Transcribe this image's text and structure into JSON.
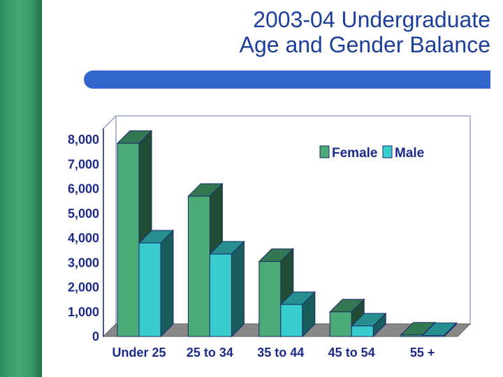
{
  "header": {
    "title_line1": "2003-04 Undergraduate",
    "title_line2": "Age and Gender Balance"
  },
  "colors": {
    "female": "#4aab76",
    "male": "#38cccc",
    "accent": "#3366cc",
    "text": "#1c2a8c",
    "side_band": "#3a9a67"
  },
  "chart_data": {
    "type": "bar",
    "categories": [
      "Under 25",
      "25 to 34",
      "35 to 44",
      "45 to 54",
      "55 +"
    ],
    "series": [
      {
        "name": "Female",
        "values": [
          7850,
          5700,
          3050,
          1000,
          60
        ]
      },
      {
        "name": "Male",
        "values": [
          3800,
          3350,
          1300,
          430,
          40
        ]
      }
    ],
    "ylim": [
      0,
      8000
    ],
    "yticks": [
      "0",
      "1,000",
      "2,000",
      "3,000",
      "4,000",
      "5,000",
      "6,000",
      "7,000",
      "8,000"
    ],
    "legend": "top-right",
    "grid": false,
    "style": "3d"
  }
}
